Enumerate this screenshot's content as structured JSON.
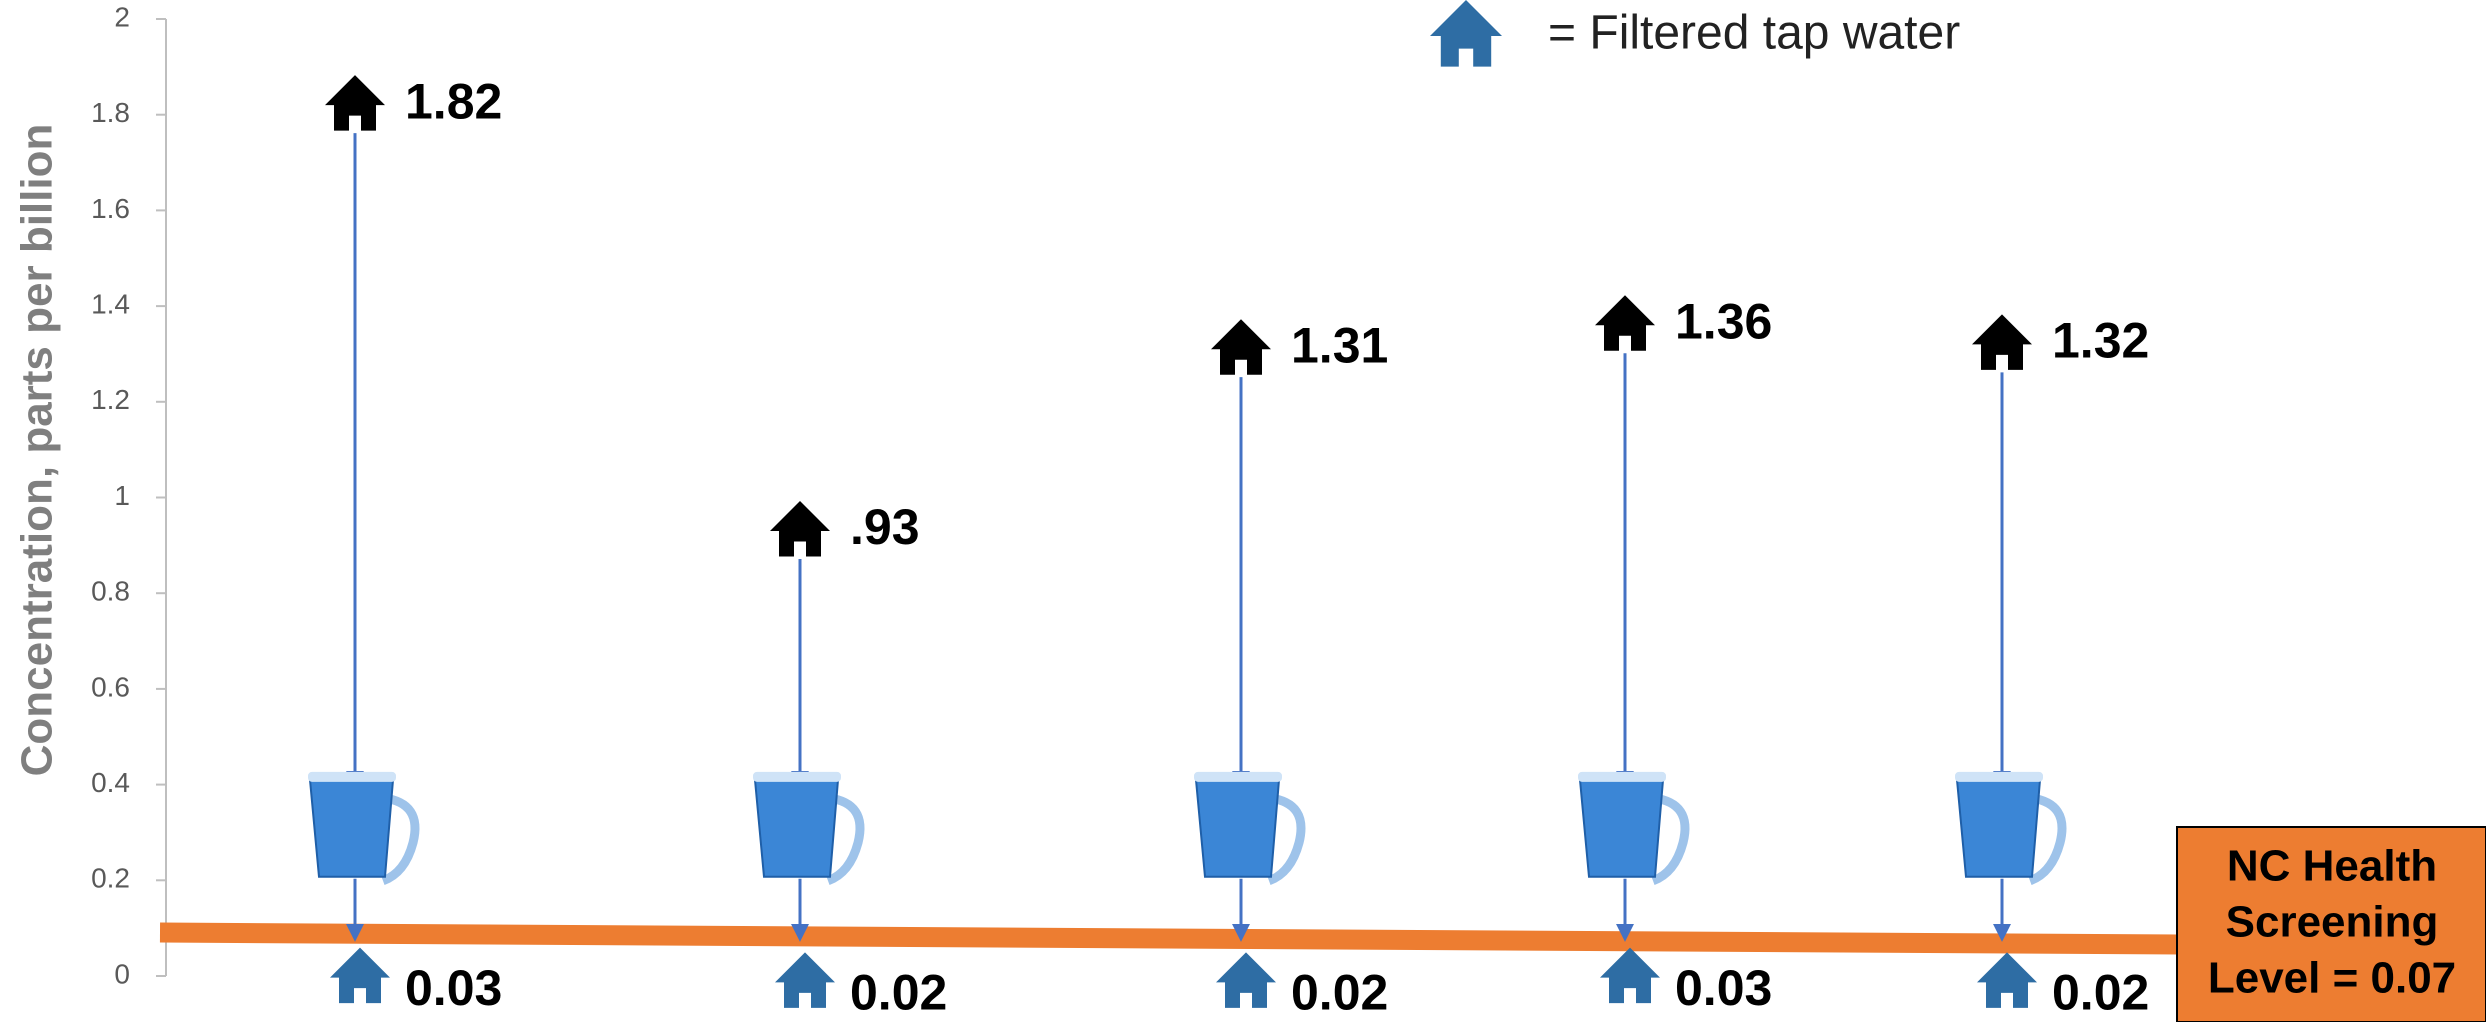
{
  "chart_data": {
    "type": "dumbbell-drop",
    "y_label": "Concentration, parts per billion",
    "ylim": [
      0,
      2
    ],
    "yticks": [
      0,
      0.2,
      0.4,
      0.6,
      0.8,
      1,
      1.2,
      1.4,
      1.6,
      1.8,
      2
    ],
    "series": [
      {
        "color": "#000000",
        "values": [
          1.82,
          0.93,
          1.31,
          1.36,
          1.32
        ],
        "value_labels": [
          "1.82",
          ".93",
          "1.31",
          "1.36",
          "1.32"
        ]
      },
      {
        "name": "= Filtered tap water",
        "color": "#2e6da4",
        "values": [
          0.03,
          0.02,
          0.02,
          0.03,
          0.02
        ]
      }
    ],
    "screening_level": 0.07,
    "screening_label": [
      "NC Health",
      "Screening",
      "Level = 0.07"
    ],
    "screening_color": "#ed7d31",
    "arrow_color": "#4472c4"
  }
}
